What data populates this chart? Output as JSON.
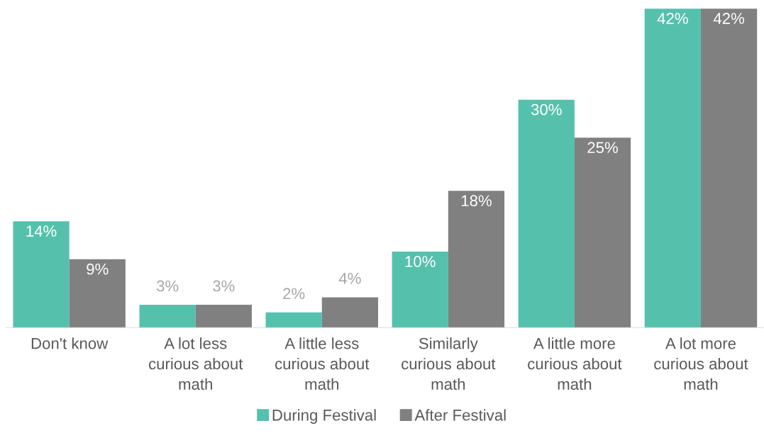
{
  "chart_data": {
    "type": "bar",
    "categories": [
      "Don't know",
      "A lot less\ncurious about\nmath",
      "A little less\ncurious about\nmath",
      "Similarly\ncurious about\nmath",
      "A little more\ncurious about\nmath",
      "A lot more\ncurious about\nmath"
    ],
    "series": [
      {
        "name": "During Festival",
        "color": "#55c1ad",
        "values": [
          14,
          3,
          2,
          10,
          30,
          42
        ],
        "value_labels": [
          "14%",
          "3%",
          "2%",
          "10%",
          "30%",
          "42%"
        ]
      },
      {
        "name": "After Festival",
        "color": "#808080",
        "values": [
          9,
          3,
          4,
          18,
          25,
          42
        ],
        "value_labels": [
          "9%",
          "3%",
          "4%",
          "18%",
          "25%",
          "42%"
        ]
      }
    ],
    "grid": false,
    "legend": "bottom"
  }
}
